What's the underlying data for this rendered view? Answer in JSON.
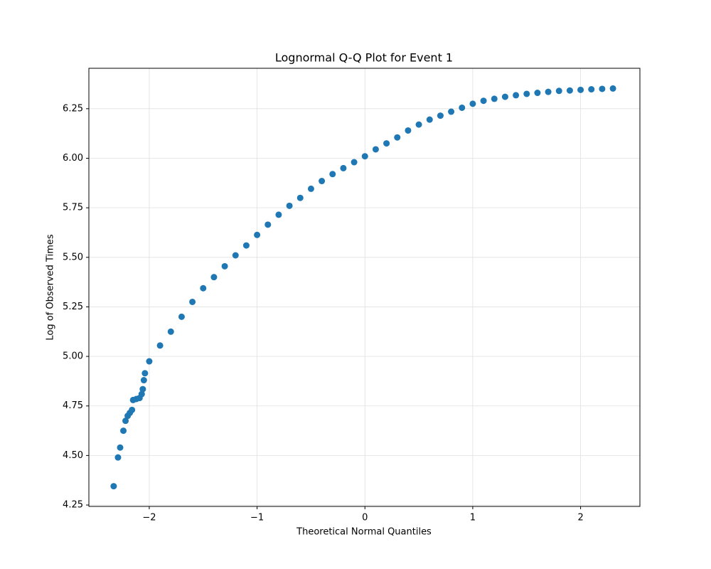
{
  "chart_data": {
    "type": "scatter",
    "title": "Lognormal Q-Q Plot for Event 1",
    "x_label": "Theoretical Normal Quantiles",
    "y_label": "Log of Observed Times",
    "color": "#1f77b4",
    "grid": true,
    "xlim": [
      -2.56,
      2.55
    ],
    "ylim": [
      4.243,
      6.454
    ],
    "xticks": [
      {
        "value": -2,
        "label": "−2"
      },
      {
        "value": -1,
        "label": "−1"
      },
      0,
      1,
      2
    ],
    "yticks": [
      4.25,
      {
        "value": 4.5,
        "label": "4.50"
      },
      4.75,
      {
        "value": 5.0,
        "label": "5.00"
      },
      5.25,
      {
        "value": 5.5,
        "label": "5.50"
      },
      5.75,
      {
        "value": 6.0,
        "label": "6.00"
      },
      6.25
    ],
    "x": [
      -2.33,
      -2.29,
      -2.27,
      -2.24,
      -2.22,
      -2.2,
      -2.18,
      -2.16,
      -2.15,
      -2.12,
      -2.09,
      -2.07,
      -2.06,
      -2.05,
      -2.04,
      -2.0,
      -1.9,
      -1.8,
      -1.7,
      -1.6,
      -1.5,
      -1.4,
      -1.3,
      -1.2,
      -1.1,
      -1.0,
      -0.9,
      -0.8,
      -0.7,
      -0.6,
      -0.5,
      -0.4,
      -0.3,
      -0.2,
      -0.1,
      0,
      0.1,
      0.2,
      0.3,
      0.4,
      0.5,
      0.6,
      0.7,
      0.8,
      0.9,
      1.0,
      1.1,
      1.2,
      1.3,
      1.4,
      1.5,
      1.6,
      1.7,
      1.8,
      1.9,
      2.0,
      2.1,
      2.2,
      2.3
    ],
    "y": [
      4.345,
      4.49,
      4.54,
      4.625,
      4.675,
      4.7,
      4.715,
      4.73,
      4.78,
      4.785,
      4.79,
      4.81,
      4.835,
      4.88,
      4.915,
      4.975,
      5.055,
      5.125,
      5.2,
      5.275,
      5.344,
      5.4,
      5.455,
      5.51,
      5.56,
      5.613,
      5.665,
      5.715,
      5.76,
      5.8,
      5.846,
      5.885,
      5.92,
      5.95,
      5.98,
      6.01,
      6.045,
      6.075,
      6.105,
      6.14,
      6.17,
      6.195,
      6.215,
      6.235,
      6.255,
      6.275,
      6.29,
      6.3,
      6.31,
      6.318,
      6.325,
      6.33,
      6.335,
      6.34,
      6.342,
      6.345,
      6.348,
      6.35,
      6.352
    ]
  }
}
